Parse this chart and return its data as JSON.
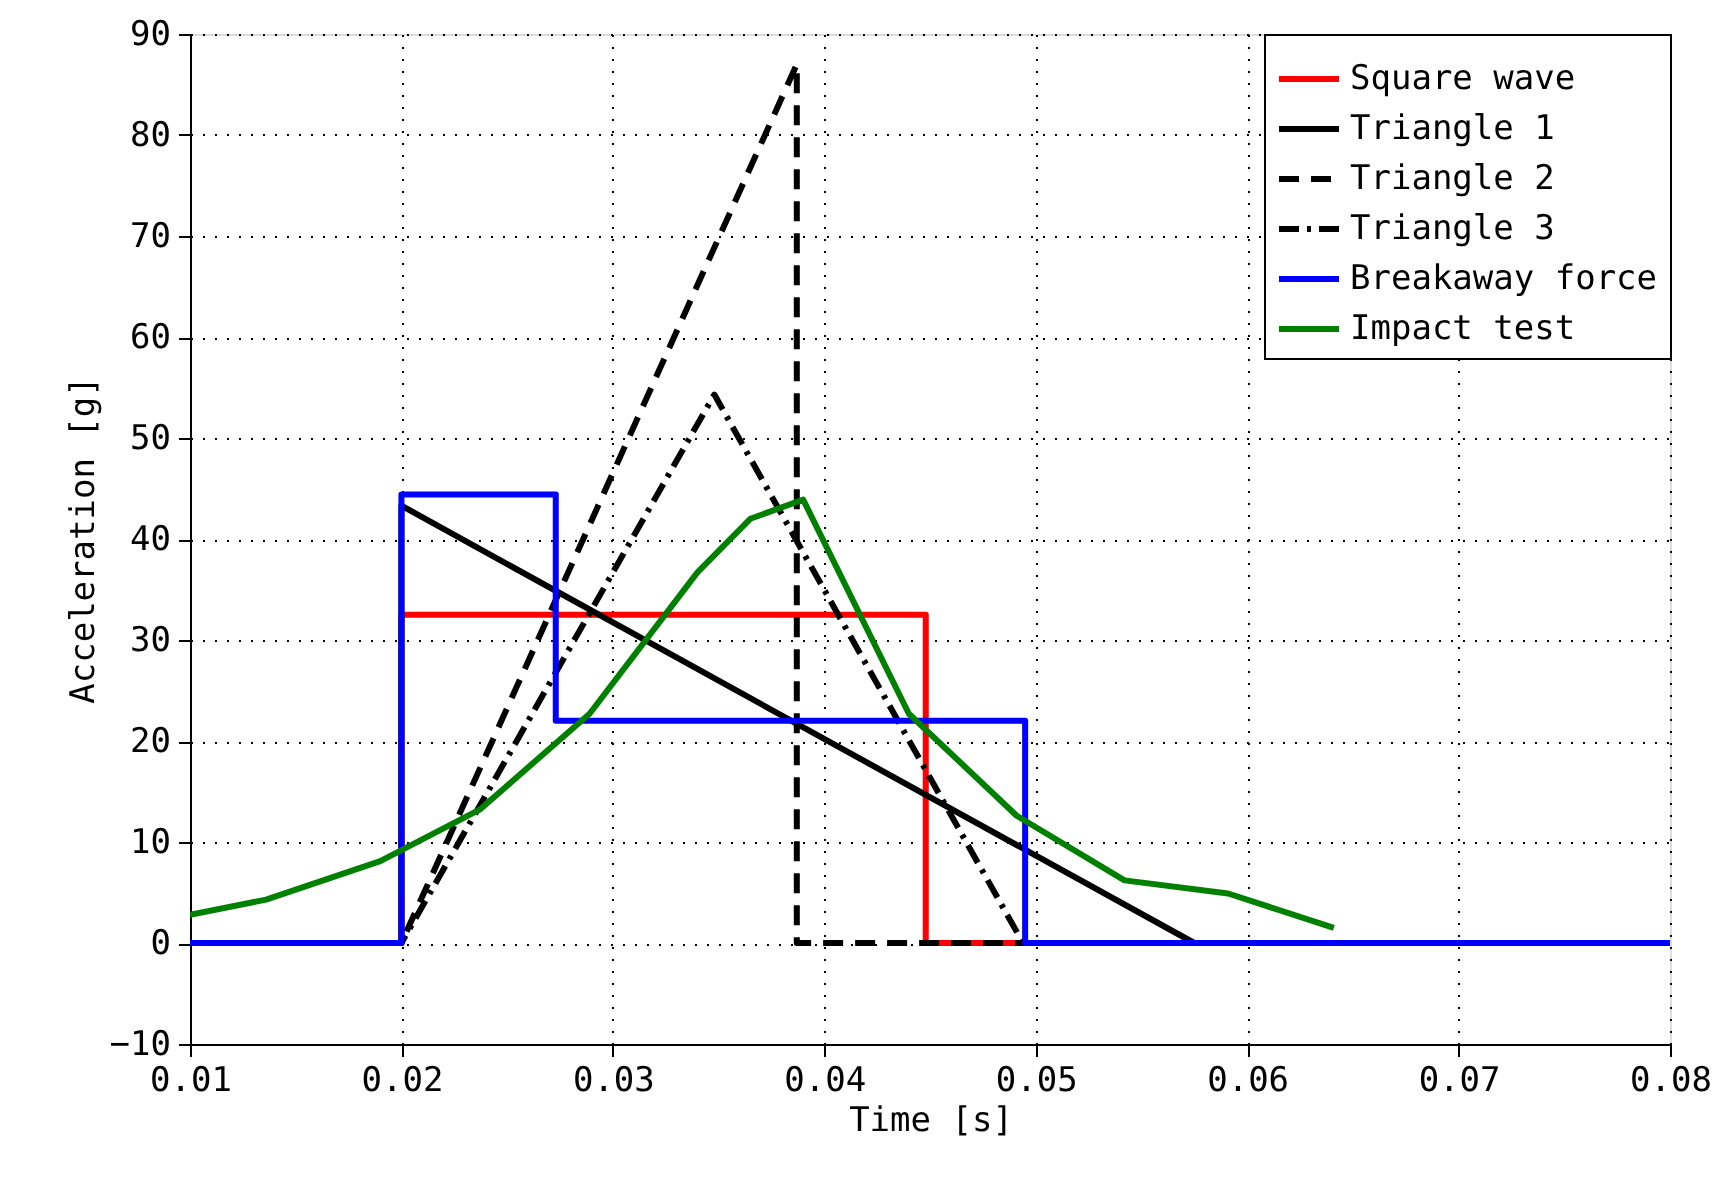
{
  "chart_data": {
    "type": "line",
    "xlabel": "Time [s]",
    "ylabel": "Acceleration [g]",
    "xlim": [
      0.01,
      0.08
    ],
    "xticks": [
      0.01,
      0.02,
      0.03,
      0.04,
      0.05,
      0.06,
      0.07,
      0.08
    ],
    "ylim": [
      -10,
      90
    ],
    "yticks": [
      -10,
      0,
      10,
      20,
      30,
      40,
      50,
      60,
      70,
      80,
      90
    ],
    "grid": true,
    "legend": "top right",
    "series": [
      {
        "name": "Square wave",
        "color": "#ff0000",
        "line_style": "solid",
        "x": [
          0.01,
          0.02,
          0.02,
          0.0448,
          0.0448,
          0.0495
        ],
        "values": [
          0,
          0,
          32.5,
          32.5,
          0,
          0
        ]
      },
      {
        "name": "Triangle 1",
        "color": "#000000",
        "line_style": "solid",
        "x": [
          0.01,
          0.02,
          0.02,
          0.0575,
          0.08
        ],
        "values": [
          0,
          0,
          43.3,
          0,
          0
        ]
      },
      {
        "name": "Triangle 2",
        "color": "#000000",
        "line_style": "dashed",
        "x": [
          0.01,
          0.02,
          0.0387,
          0.0387,
          0.08
        ],
        "values": [
          0,
          0,
          87,
          0,
          0
        ]
      },
      {
        "name": "Triangle 3",
        "color": "#000000",
        "line_style": "dashdot",
        "x": [
          0.01,
          0.02,
          0.0348,
          0.0494,
          0.08
        ],
        "values": [
          0,
          0,
          54.3,
          0,
          0
        ]
      },
      {
        "name": "Breakaway force",
        "color": "#0000ff",
        "line_style": "solid",
        "x": [
          0.01,
          0.02,
          0.02,
          0.0273,
          0.0273,
          0.0495,
          0.0495,
          0.08
        ],
        "values": [
          0,
          0,
          44.4,
          44.4,
          22,
          22,
          0,
          0
        ]
      },
      {
        "name": "Impact test",
        "color": "#008000",
        "line_style": "solid",
        "x": [
          0.01,
          0.0136,
          0.019,
          0.0237,
          0.0289,
          0.034,
          0.0365,
          0.039,
          0.044,
          0.0491,
          0.0542,
          0.0591,
          0.0641
        ],
        "values": [
          2.8,
          4.3,
          8.1,
          13.2,
          22.7,
          36.7,
          42,
          43.9,
          22.7,
          12.6,
          6.2,
          4.9,
          1.5
        ]
      }
    ]
  }
}
